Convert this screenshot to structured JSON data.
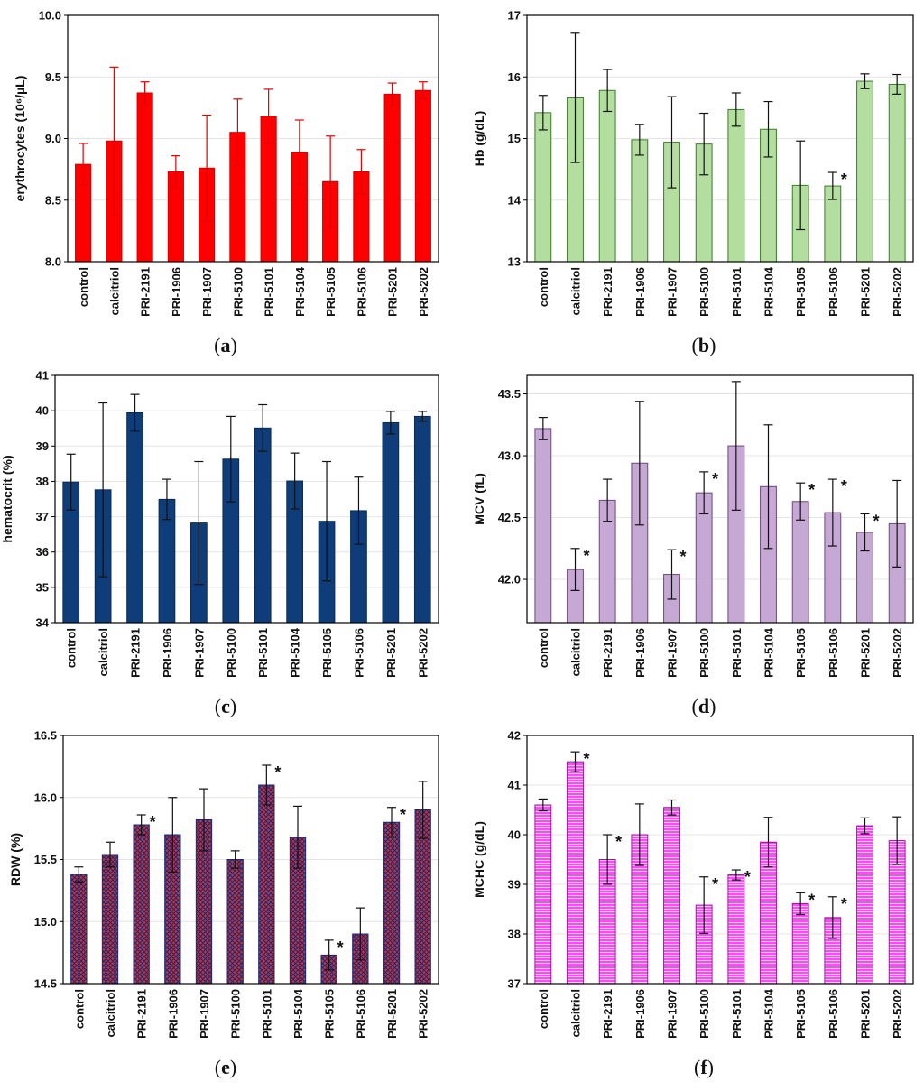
{
  "chart_data": [
    {
      "type": "bar",
      "panel_label": "(a)",
      "ylabel": "erythrocytes (10⁶/µL)",
      "ylim": [
        8.0,
        10.0
      ],
      "yticks": [
        "8.0",
        "8.5",
        "9.0",
        "9.5",
        "10.0"
      ],
      "categories": [
        "control",
        "calcitriol",
        "PRI-2191",
        "PRI-1906",
        "PRI-1907",
        "PRI-5100",
        "PRI-5101",
        "PRI-5104",
        "PRI-5105",
        "PRI-5106",
        "PRI-5201",
        "PRI-5202"
      ],
      "values": [
        8.79,
        8.98,
        9.37,
        8.73,
        8.76,
        9.05,
        9.18,
        8.89,
        8.65,
        8.73,
        9.36,
        9.39
      ],
      "error": [
        0.17,
        0.6,
        0.09,
        0.13,
        0.43,
        0.27,
        0.22,
        0.26,
        0.37,
        0.18,
        0.09,
        0.07
      ],
      "significant": [],
      "bar_color": "#ff0000",
      "bar_edge": "#cc0000",
      "fill_style": "solid",
      "grid": true
    },
    {
      "type": "bar",
      "panel_label": "(b)",
      "ylabel": "Hb (g/dL)",
      "ylim": [
        13,
        17
      ],
      "yticks": [
        "13",
        "14",
        "15",
        "16",
        "17"
      ],
      "categories": [
        "control",
        "calcitriol",
        "PRI-2191",
        "PRI-1906",
        "PRI-1907",
        "PRI-5100",
        "PRI-5101",
        "PRI-5104",
        "PRI-5105",
        "PRI-5106",
        "PRI-5201",
        "PRI-5202"
      ],
      "values": [
        15.42,
        15.66,
        15.78,
        14.98,
        14.94,
        14.91,
        15.47,
        15.15,
        14.24,
        14.23,
        15.93,
        15.88
      ],
      "error": [
        0.28,
        1.05,
        0.34,
        0.25,
        0.74,
        0.5,
        0.27,
        0.45,
        0.72,
        0.22,
        0.12,
        0.16
      ],
      "significant": [
        9
      ],
      "bar_color": "#b3dea0",
      "bar_edge": "#3c7a2c",
      "fill_style": "solid",
      "grid": true
    },
    {
      "type": "bar",
      "panel_label": "(c)",
      "ylabel": "hematocrit (%)",
      "ylim": [
        34,
        41
      ],
      "yticks": [
        "34",
        "35",
        "36",
        "37",
        "38",
        "39",
        "40",
        "41"
      ],
      "categories": [
        "control",
        "calcitriol",
        "PRI-2191",
        "PRI-1906",
        "PRI-1907",
        "PRI-5100",
        "PRI-5101",
        "PRI-5104",
        "PRI-5105",
        "PRI-5106",
        "PRI-5201",
        "PRI-5202"
      ],
      "values": [
        37.98,
        37.76,
        39.94,
        37.49,
        36.82,
        38.63,
        39.51,
        38.01,
        36.87,
        37.17,
        39.66,
        39.84
      ],
      "error": [
        0.79,
        2.46,
        0.52,
        0.57,
        1.74,
        1.21,
        0.66,
        0.79,
        1.69,
        0.95,
        0.32,
        0.14
      ],
      "significant": [],
      "bar_color": "#0f3d7a",
      "bar_edge": "#0a2a55",
      "fill_style": "solid",
      "grid": true
    },
    {
      "type": "bar",
      "panel_label": "(d)",
      "ylabel": "MCV (fL)",
      "ylim": [
        41.65,
        43.65
      ],
      "yticks": [
        "42.0",
        "42.5",
        "43.0",
        "43.5"
      ],
      "ytick_values": [
        42.0,
        42.5,
        43.0,
        43.5
      ],
      "categories": [
        "control",
        "calcitriol",
        "PRI-2191",
        "PRI-1906",
        "PRI-1907",
        "PRI-5100",
        "PRI-5101",
        "PRI-5104",
        "PRI-5105",
        "PRI-5106",
        "PRI-5201",
        "PRI-5202"
      ],
      "values": [
        43.22,
        42.08,
        42.64,
        42.94,
        42.04,
        42.7,
        43.08,
        42.75,
        42.63,
        42.54,
        42.38,
        42.45
      ],
      "error": [
        0.09,
        0.17,
        0.17,
        0.5,
        0.2,
        0.17,
        0.52,
        0.5,
        0.15,
        0.27,
        0.15,
        0.35
      ],
      "significant": [
        1,
        4,
        5,
        8,
        9,
        10
      ],
      "bar_color": "#c6a8d4",
      "bar_edge": "#6a4a7a",
      "fill_style": "solid",
      "grid": true
    },
    {
      "type": "bar",
      "panel_label": "(e)",
      "ylabel": "RDW (%)",
      "ylim": [
        14.5,
        16.5
      ],
      "yticks": [
        "14.5",
        "15.0",
        "15.5",
        "16.0",
        "16.5"
      ],
      "categories": [
        "control",
        "calcitriol",
        "PRI-2191",
        "PRI-1906",
        "PRI-1907",
        "PRI-5100",
        "PRI-5101",
        "PRI-5104",
        "PRI-5105",
        "PRI-5106",
        "PRI-5201",
        "PRI-5202"
      ],
      "values": [
        15.38,
        15.54,
        15.78,
        15.7,
        15.82,
        15.5,
        16.1,
        15.68,
        14.73,
        14.9,
        15.8,
        15.9
      ],
      "error": [
        0.06,
        0.1,
        0.08,
        0.3,
        0.25,
        0.07,
        0.16,
        0.25,
        0.12,
        0.21,
        0.12,
        0.23
      ],
      "significant": [
        2,
        6,
        8,
        10
      ],
      "bar_color": "#c83232",
      "bar_edge": "#1a2a7a",
      "fill_style": "crosshatch",
      "grid": true
    },
    {
      "type": "bar",
      "panel_label": "(f)",
      "ylabel": "MCHC (g/dL)",
      "ylim": [
        37,
        42
      ],
      "yticks": [
        "37",
        "38",
        "39",
        "40",
        "41",
        "42"
      ],
      "categories": [
        "control",
        "calcitriol",
        "PRI-2191",
        "PRI-1906",
        "PRI-1907",
        "PRI-5100",
        "PRI-5101",
        "PRI-5104",
        "PRI-5105",
        "PRI-5106",
        "PRI-5201",
        "PRI-5202"
      ],
      "values": [
        40.6,
        41.47,
        39.5,
        40.0,
        40.55,
        38.58,
        39.19,
        39.85,
        38.61,
        38.33,
        40.18,
        39.88
      ],
      "error": [
        0.12,
        0.2,
        0.5,
        0.62,
        0.15,
        0.57,
        0.1,
        0.5,
        0.22,
        0.42,
        0.16,
        0.48
      ],
      "significant": [
        1,
        2,
        5,
        6,
        8,
        9
      ],
      "bar_color": "#ff33ff",
      "bar_edge": "#a010a0",
      "fill_style": "hlines",
      "grid": true
    }
  ]
}
